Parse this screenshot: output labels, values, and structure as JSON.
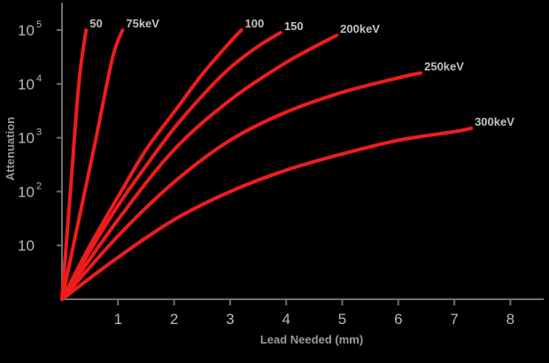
{
  "chart_data": {
    "type": "line",
    "title": "",
    "xlabel": "Lead Needed (mm)",
    "ylabel": "Attenuation",
    "xlim": [
      0,
      8.6
    ],
    "y_scale": "log",
    "ylim": [
      1,
      100000
    ],
    "x_ticks": [
      {
        "value": 1,
        "label": "1"
      },
      {
        "value": 2,
        "label": "2"
      },
      {
        "value": 3,
        "label": "3"
      },
      {
        "value": 4,
        "label": "4"
      },
      {
        "value": 5,
        "label": "5"
      },
      {
        "value": 6,
        "label": "6"
      },
      {
        "value": 7,
        "label": "7"
      },
      {
        "value": 8,
        "label": "8"
      }
    ],
    "y_ticks": [
      {
        "value": 10,
        "base": "10",
        "exp": ""
      },
      {
        "value": 100,
        "base": "10",
        "exp": "2"
      },
      {
        "value": 1000,
        "base": "10",
        "exp": "3"
      },
      {
        "value": 10000,
        "base": "10",
        "exp": "4"
      },
      {
        "value": 100000,
        "base": "10",
        "exp": "5"
      }
    ],
    "grid": false,
    "legend": "none",
    "line_color": "#ef1c1c",
    "series": [
      {
        "name": "50",
        "x": [
          0,
          0.15,
          0.3,
          0.43
        ],
        "y": [
          1,
          100,
          10000,
          100000
        ]
      },
      {
        "name": "75keV",
        "x": [
          0,
          0.3,
          0.6,
          0.9,
          1.08
        ],
        "y": [
          1,
          30,
          900,
          30000,
          100000
        ]
      },
      {
        "name": "100",
        "x": [
          0,
          0.5,
          1.0,
          1.5,
          2.0,
          2.5,
          3.0,
          3.2
        ],
        "y": [
          1,
          10,
          80,
          600,
          3000,
          15000,
          60000,
          100000
        ]
      },
      {
        "name": "150",
        "x": [
          0,
          0.5,
          1.0,
          1.5,
          2.0,
          2.5,
          3.0,
          3.5,
          3.9
        ],
        "y": [
          1,
          8,
          55,
          300,
          1500,
          6000,
          20000,
          50000,
          90000
        ]
      },
      {
        "name": "200keV",
        "x": [
          0,
          1,
          2,
          3,
          4,
          4.9
        ],
        "y": [
          1,
          30,
          600,
          5000,
          25000,
          80000
        ]
      },
      {
        "name": "250keV",
        "x": [
          0,
          1,
          2,
          3,
          4,
          5,
          6,
          6.4
        ],
        "y": [
          1,
          15,
          150,
          900,
          3000,
          7000,
          13000,
          16000
        ]
      },
      {
        "name": "300keV",
        "x": [
          0,
          1,
          2,
          3,
          4,
          5,
          6,
          7,
          7.3
        ],
        "y": [
          1,
          6,
          30,
          100,
          250,
          500,
          900,
          1300,
          1500
        ]
      }
    ],
    "label_series_index_map": [
      0,
      1,
      2,
      3,
      4,
      5,
      6
    ]
  }
}
